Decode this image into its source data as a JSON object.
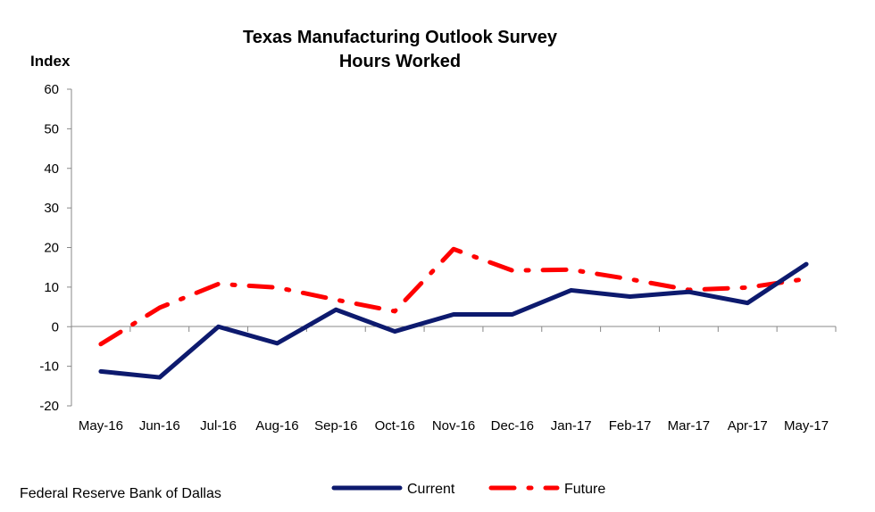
{
  "chart_data": {
    "type": "line",
    "title": "Texas Manufacturing Outlook Survey",
    "subtitle": "Hours Worked",
    "ylabel": "Index",
    "ylim": [
      -20,
      60
    ],
    "yticks": [
      -20,
      -10,
      0,
      10,
      20,
      30,
      40,
      50,
      60
    ],
    "categories": [
      "May-16",
      "Jun-16",
      "Jul-16",
      "Aug-16",
      "Sep-16",
      "Oct-16",
      "Nov-16",
      "Dec-16",
      "Jan-17",
      "Feb-17",
      "Mar-17",
      "Apr-17",
      "May-17"
    ],
    "series": [
      {
        "name": "Current",
        "color": "#0d1a6e",
        "style": "solid",
        "values": [
          -11.3,
          -12.8,
          0.0,
          -4.2,
          4.3,
          -1.2,
          3.1,
          3.1,
          9.2,
          7.6,
          8.8,
          6.0,
          15.8
        ]
      },
      {
        "name": "Future",
        "color": "#ff0000",
        "style": "dash-dot",
        "values": [
          -4.4,
          4.8,
          10.8,
          9.9,
          6.8,
          3.9,
          19.6,
          14.2,
          14.4,
          12.0,
          9.3,
          9.9,
          12.1
        ]
      }
    ],
    "grid": false,
    "legend_position": "bottom-center"
  },
  "source": "Federal Reserve Bank of Dallas"
}
